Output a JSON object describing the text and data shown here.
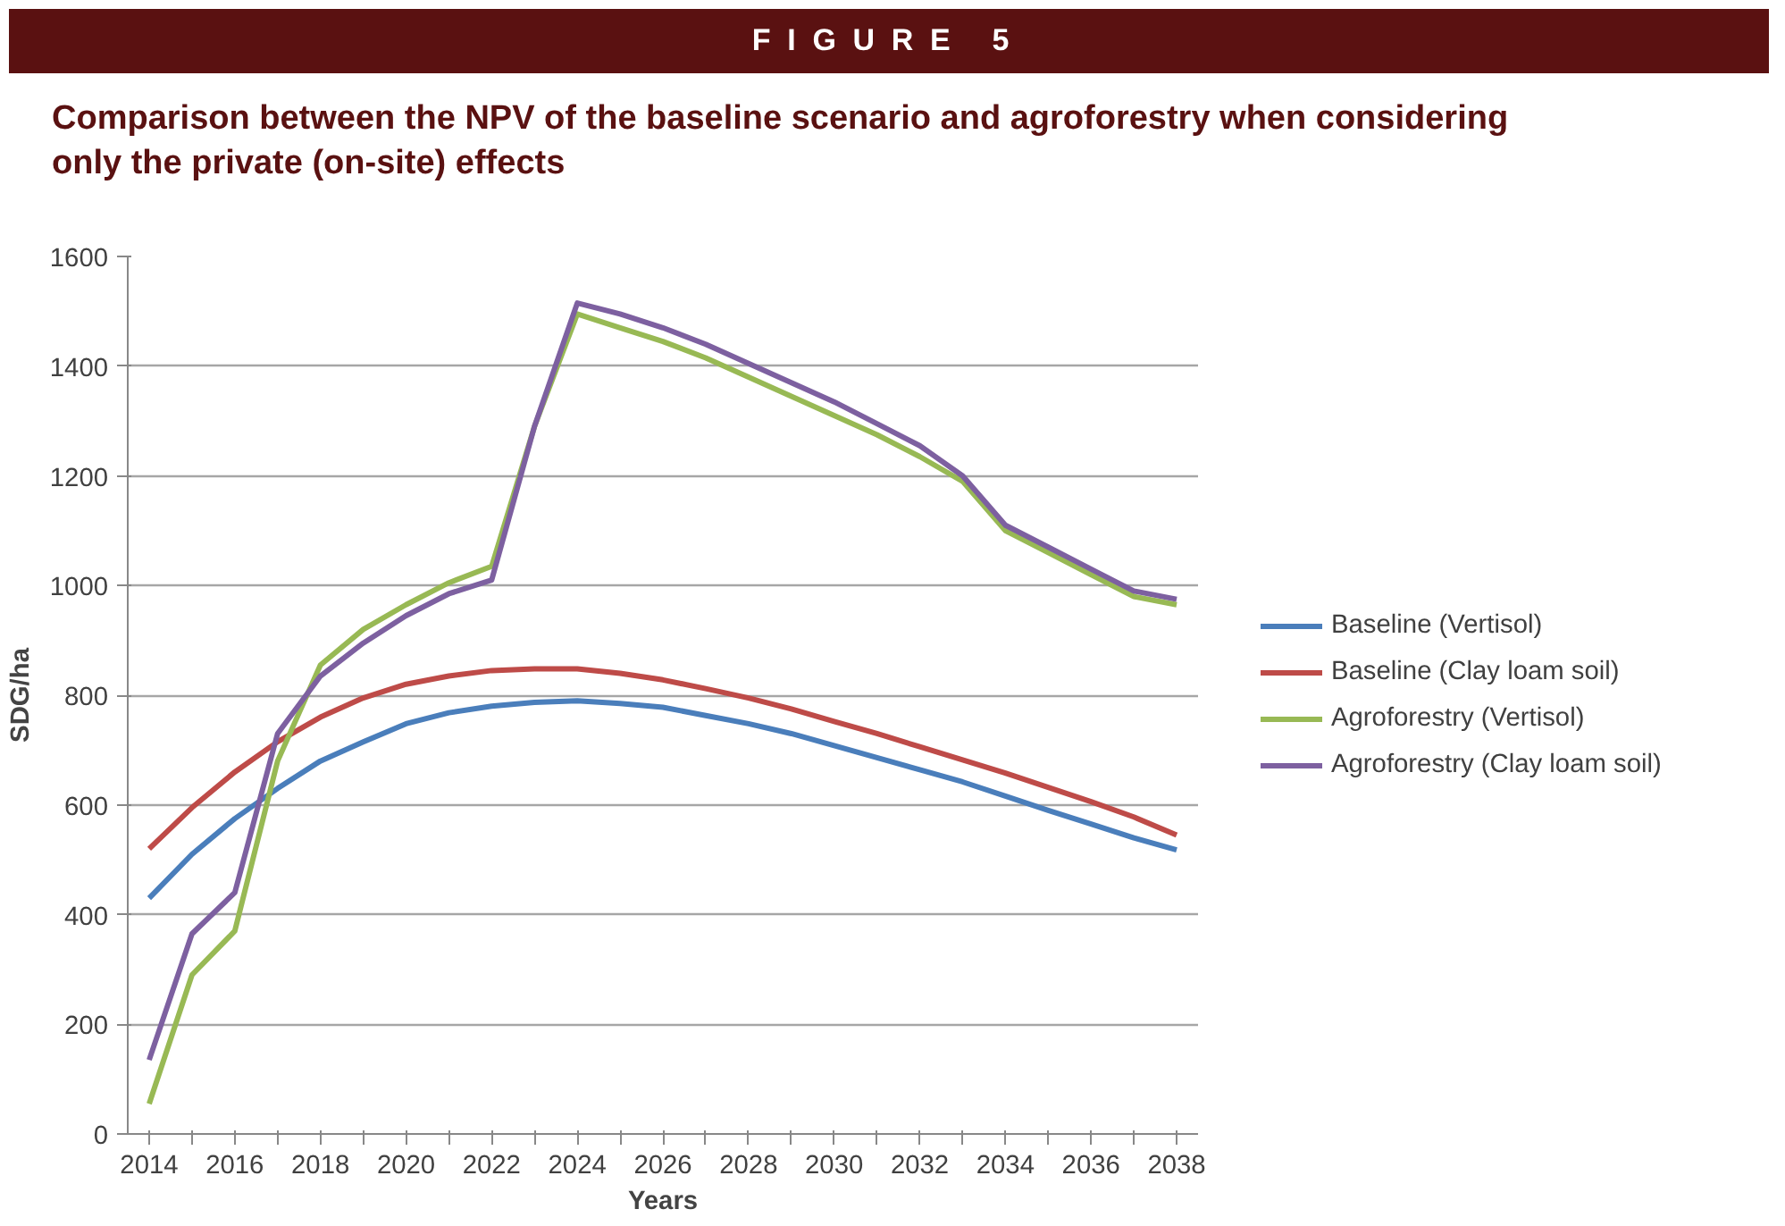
{
  "chart_data": {
    "type": "line",
    "subtitle": "FIGURE 5",
    "title": "Comparison between the NPV of the baseline scenario and agroforestry when considering only the private (on-site) effects",
    "xlabel": "Years",
    "ylabel": "SDG/ha",
    "categories": [
      "2014",
      null,
      "2016",
      null,
      "2018",
      null,
      "2020",
      null,
      "2022",
      null,
      "2024",
      null,
      "2026",
      null,
      "2028",
      null,
      "2030",
      null,
      "2032",
      null,
      "2034",
      null,
      "2036",
      null,
      "2038"
    ],
    "series": [
      {
        "name": "Baseline (Vertisol)",
        "color": "#4a7ebb",
        "values": [
          430,
          510,
          575,
          630,
          680,
          715,
          748,
          768,
          780,
          787,
          790,
          785,
          778,
          763,
          748,
          730,
          708,
          686,
          664,
          642,
          616,
          590,
          565,
          540,
          518
        ]
      },
      {
        "name": "Baseline (Clay loam soil)",
        "color": "#be4b48",
        "values": [
          520,
          595,
          660,
          715,
          760,
          795,
          820,
          835,
          845,
          848,
          848,
          840,
          828,
          812,
          795,
          775,
          752,
          730,
          706,
          682,
          658,
          632,
          606,
          578,
          545
        ]
      },
      {
        "name": "Agroforestry (Vertisol)",
        "color": "#98b954",
        "values": [
          55,
          290,
          370,
          680,
          855,
          920,
          965,
          1005,
          1035,
          1290,
          1495,
          1470,
          1445,
          1415,
          1380,
          1345,
          1310,
          1275,
          1235,
          1190,
          1100,
          1060,
          1020,
          980,
          965
        ]
      },
      {
        "name": "Agroforestry (Clay loam soil)",
        "color": "#7d60a0",
        "values": [
          135,
          365,
          440,
          730,
          835,
          895,
          945,
          985,
          1010,
          1290,
          1515,
          1495,
          1470,
          1440,
          1405,
          1370,
          1335,
          1295,
          1255,
          1200,
          1110,
          1070,
          1030,
          990,
          975
        ]
      }
    ],
    "ylim": [
      0,
      1600
    ],
    "yticks": [
      0,
      200,
      400,
      600,
      800,
      1000,
      1200,
      1400,
      1600
    ],
    "grid": "y",
    "legend": "right",
    "marker": "none",
    "line_style": "solid"
  }
}
